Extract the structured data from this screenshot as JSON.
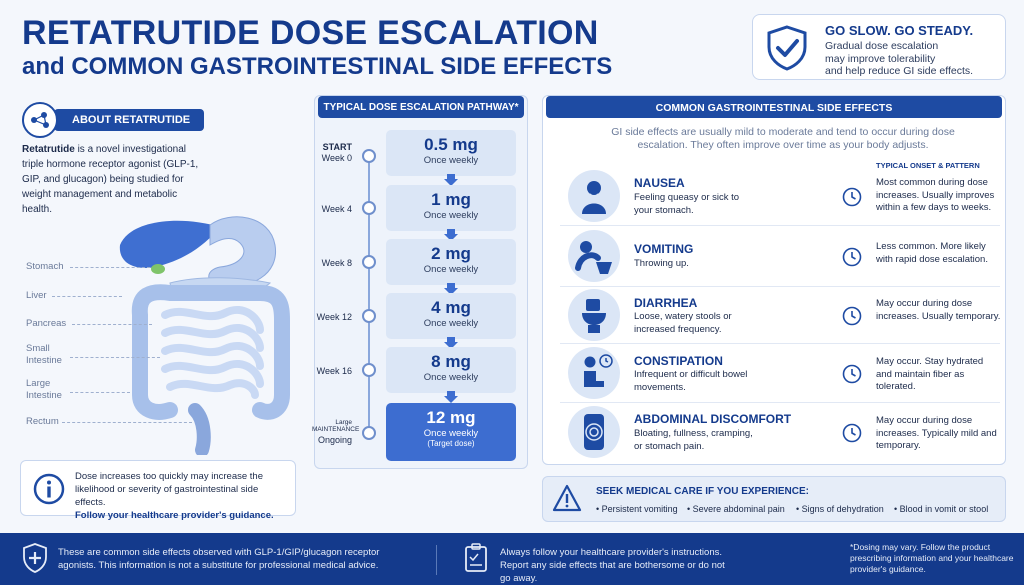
{
  "title": {
    "line1": "RETATRUTIDE DOSE ESCALATION",
    "line2": "and COMMON GASTROINTESTINAL SIDE EFFECTS"
  },
  "go_slow": {
    "heading": "GO SLOW.  GO STEADY.",
    "text_lines": [
      "Gradual dose escalation",
      "may improve tolerability",
      "and help reduce GI side effects."
    ],
    "icon": "shield-check-icon"
  },
  "about": {
    "heading": "ABOUT RETATRUTIDE",
    "lead": "Retatrutide",
    "body": " is a novel investigational triple hormone receptor agonist (GLP-1, GIP, and glucagon) being studied for weight management and metabolic health.",
    "organs": [
      "Stomach",
      "Liver",
      "Pancreas",
      "Small Intestine",
      "Large Intestine",
      "Rectum"
    ]
  },
  "warning": {
    "text": "Dose increases too quickly may increase the likelihood or severity of gastrointestinal side effects.",
    "emphasis": "Follow your healthcare provider's guidance.",
    "icon": "info-icon"
  },
  "pathway": {
    "heading": "TYPICAL DOSE ESCALATION PATHWAY*",
    "steps": [
      {
        "week_top": "START",
        "week": "Week 0",
        "dose": "0.5 mg",
        "freq": "Once weekly",
        "note": ""
      },
      {
        "week_top": "",
        "week": "Week 4",
        "dose": "1 mg",
        "freq": "Once weekly",
        "note": ""
      },
      {
        "week_top": "",
        "week": "Week 8",
        "dose": "2 mg",
        "freq": "Once weekly",
        "note": ""
      },
      {
        "week_top": "",
        "week": "Week 12",
        "dose": "4 mg",
        "freq": "Once weekly",
        "note": ""
      },
      {
        "week_top": "",
        "week": "Week 16",
        "dose": "8 mg",
        "freq": "Once weekly",
        "note": ""
      },
      {
        "week_top": "Large MAINTENANCE",
        "week": "Ongoing",
        "dose": "12 mg",
        "freq": "Once weekly",
        "note": "(Target dose)"
      }
    ]
  },
  "side_effects": {
    "heading": "COMMON GASTROINTESTINAL SIDE EFFECTS",
    "intro": "GI side effects are usually mild to moderate and tend to occur during dose escalation. They often improve over time as your body adjusts.",
    "onset_heading": "TYPICAL ONSET & PATTERN",
    "items": [
      {
        "name": "NAUSEA",
        "desc": "Feeling queasy or sick to your stomach.",
        "onset": "Most common during dose increases. Usually improves within a few days to weeks.",
        "icon": "nausea-icon"
      },
      {
        "name": "VOMITING",
        "desc": "Throwing up.",
        "onset": "Less common. More likely with rapid dose escalation.",
        "icon": "vomiting-icon"
      },
      {
        "name": "DIARRHEA",
        "desc": "Loose, watery stools or increased frequency.",
        "onset": "May occur during dose increases. Usually temporary.",
        "icon": "toilet-icon"
      },
      {
        "name": "CONSTIPATION",
        "desc": "Infrequent or difficult bowel movements.",
        "onset": "May occur. Stay hydrated and maintain fiber as tolerated.",
        "icon": "constipation-icon"
      },
      {
        "name": "ABDOMINAL DISCOMFORT",
        "desc": "Bloating, fullness, cramping, or stomach pain.",
        "onset": "May occur during dose increases. Typically mild and temporary.",
        "icon": "abdomen-icon"
      }
    ]
  },
  "seek_care": {
    "title": "SEEK MEDICAL CARE IF YOU EXPERIENCE:",
    "items": [
      "• Persistent vomiting",
      "• Severe abdominal pain",
      "• Signs of dehydration",
      "• Blood in vomit or stool"
    ],
    "icon": "warning-triangle-icon"
  },
  "footer": {
    "left": "These are common side effects observed with GLP-1/GIP/glucagon receptor agonists. This information is not a substitute for professional medical advice.",
    "middle": "Always follow your healthcare provider's instructions. Report any side effects that are bothersome or do not go away.",
    "right": "*Dosing may vary. Follow the product prescribing information and your healthcare provider's guidance."
  },
  "colors": {
    "primary": "#143a8c",
    "accent": "#1e4ba3",
    "light": "#dbe6f6"
  }
}
